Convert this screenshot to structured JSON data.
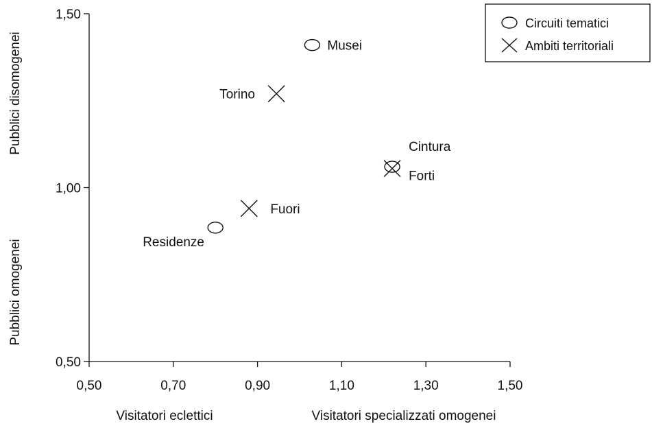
{
  "chart_data": {
    "type": "scatter",
    "xlim": [
      0.5,
      1.5
    ],
    "ylim": [
      0.5,
      1.5
    ],
    "x_ticks": [
      {
        "value": 0.5,
        "label": "0,50"
      },
      {
        "value": 0.7,
        "label": "0,70"
      },
      {
        "value": 0.9,
        "label": "0,90"
      },
      {
        "value": 1.1,
        "label": "1,10"
      },
      {
        "value": 1.3,
        "label": "1,30"
      },
      {
        "value": 1.5,
        "label": "1,50"
      }
    ],
    "y_ticks": [
      {
        "value": 0.5,
        "label": "0,50"
      },
      {
        "value": 1.0,
        "label": "1,00"
      },
      {
        "value": 1.5,
        "label": "1,50"
      }
    ],
    "x_axis_labels": {
      "left": "Visitatori eclettici",
      "right": "Visitatori specializzati omogenei"
    },
    "y_axis_labels": {
      "bottom": "Pubblici omogenei",
      "top": "Pubblici disomogenei"
    },
    "legend": {
      "position": "top-right",
      "entries": [
        {
          "marker": "ellipse",
          "label": "Circuiti tematici"
        },
        {
          "marker": "cross",
          "label": "Ambiti territoriali"
        }
      ]
    },
    "series": [
      {
        "name": "Circuiti tematici",
        "marker": "ellipse",
        "points": [
          {
            "label": "Musei",
            "x": 1.03,
            "y": 1.41
          },
          {
            "label": "Cintura",
            "x": 1.22,
            "y": 1.06
          },
          {
            "label": "Residenze",
            "x": 0.8,
            "y": 0.885
          }
        ]
      },
      {
        "name": "Ambiti territoriali",
        "marker": "cross",
        "points": [
          {
            "label": "Torino",
            "x": 0.945,
            "y": 1.27
          },
          {
            "label": "Forti",
            "x": 1.22,
            "y": 1.055
          },
          {
            "label": "Fuori",
            "x": 0.88,
            "y": 0.94
          }
        ]
      }
    ],
    "grid": false
  }
}
